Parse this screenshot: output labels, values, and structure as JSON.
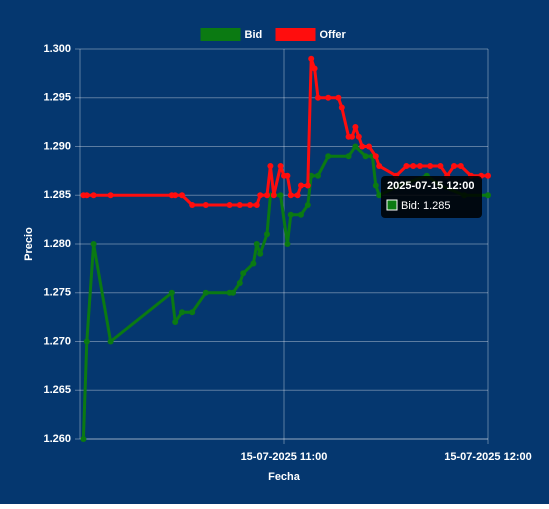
{
  "chart_data": {
    "type": "line",
    "xlabel": "Fecha",
    "ylabel": "Precio",
    "xlim": [
      "15-07-2025 10:00",
      "15-07-2025 12:00"
    ],
    "xticks": [
      "15-07-2025 11:00",
      "15-07-2025 12:00"
    ],
    "ylim": [
      1.26,
      1.3
    ],
    "yticks": [
      {
        "value": 1.26,
        "label": "1.260"
      },
      1.265,
      {
        "value": 1.27,
        "label": "1.270"
      },
      1.275,
      {
        "value": 1.28,
        "label": "1.280"
      },
      1.285,
      {
        "value": 1.29,
        "label": "1.290"
      },
      1.295,
      {
        "value": 1.3,
        "label": "1.300"
      }
    ],
    "grid": true,
    "legend": "top",
    "series": [
      {
        "name": "Bid",
        "color": "#0b7a12",
        "x": [
          "15-07-2025 10:01",
          "15-07-2025 10:02",
          "15-07-2025 10:04",
          "15-07-2025 10:09",
          "15-07-2025 10:27",
          "15-07-2025 10:28",
          "15-07-2025 10:30",
          "15-07-2025 10:33",
          "15-07-2025 10:37",
          "15-07-2025 10:44",
          "15-07-2025 10:45",
          "15-07-2025 10:47",
          "15-07-2025 10:48",
          "15-07-2025 10:51",
          "15-07-2025 10:52",
          "15-07-2025 10:53",
          "15-07-2025 10:55",
          "15-07-2025 10:56",
          "15-07-2025 10:59",
          "15-07-2025 11:01",
          "15-07-2025 11:02",
          "15-07-2025 11:05",
          "15-07-2025 11:07",
          "15-07-2025 11:08",
          "15-07-2025 11:10",
          "15-07-2025 11:13",
          "15-07-2025 11:19",
          "15-07-2025 11:21",
          "15-07-2025 11:24",
          "15-07-2025 11:26",
          "15-07-2025 11:27",
          "15-07-2025 11:28",
          "15-07-2025 11:34",
          "15-07-2025 11:42",
          "15-07-2025 11:46",
          "15-07-2025 11:53",
          "15-07-2025 12:00"
        ],
        "values": [
          1.26,
          1.27,
          1.28,
          1.27,
          1.275,
          1.272,
          1.273,
          1.273,
          1.275,
          1.275,
          1.275,
          1.276,
          1.277,
          1.278,
          1.28,
          1.279,
          1.281,
          1.285,
          1.285,
          1.28,
          1.283,
          1.283,
          1.284,
          1.287,
          1.287,
          1.289,
          1.289,
          1.29,
          1.289,
          1.289,
          1.286,
          1.285,
          1.286,
          1.287,
          1.286,
          1.285,
          1.285
        ]
      },
      {
        "name": "Offer",
        "color": "#ff0d0d",
        "x": [
          "15-07-2025 10:01",
          "15-07-2025 10:02",
          "15-07-2025 10:04",
          "15-07-2025 10:09",
          "15-07-2025 10:27",
          "15-07-2025 10:28",
          "15-07-2025 10:30",
          "15-07-2025 10:33",
          "15-07-2025 10:37",
          "15-07-2025 10:44",
          "15-07-2025 10:47",
          "15-07-2025 10:50",
          "15-07-2025 10:52",
          "15-07-2025 10:53",
          "15-07-2025 10:55",
          "15-07-2025 10:56",
          "15-07-2025 10:57",
          "15-07-2025 10:59",
          "15-07-2025 11:00",
          "15-07-2025 11:01",
          "15-07-2025 11:02",
          "15-07-2025 11:04",
          "15-07-2025 11:05",
          "15-07-2025 11:07",
          "15-07-2025 11:08",
          "15-07-2025 11:09",
          "15-07-2025 11:10",
          "15-07-2025 11:13",
          "15-07-2025 11:16",
          "15-07-2025 11:17",
          "15-07-2025 11:19",
          "15-07-2025 11:20",
          "15-07-2025 11:21",
          "15-07-2025 11:22",
          "15-07-2025 11:23",
          "15-07-2025 11:25",
          "15-07-2025 11:27",
          "15-07-2025 11:28",
          "15-07-2025 11:33",
          "15-07-2025 11:36",
          "15-07-2025 11:38",
          "15-07-2025 11:40",
          "15-07-2025 11:43",
          "15-07-2025 11:46",
          "15-07-2025 11:48",
          "15-07-2025 11:50",
          "15-07-2025 11:52",
          "15-07-2025 11:55",
          "15-07-2025 11:58",
          "15-07-2025 12:00"
        ],
        "values": [
          1.285,
          1.285,
          1.285,
          1.285,
          1.285,
          1.285,
          1.285,
          1.284,
          1.284,
          1.284,
          1.284,
          1.284,
          1.284,
          1.285,
          1.285,
          1.288,
          1.285,
          1.288,
          1.287,
          1.287,
          1.285,
          1.285,
          1.286,
          1.286,
          1.299,
          1.298,
          1.295,
          1.295,
          1.295,
          1.294,
          1.291,
          1.291,
          1.292,
          1.291,
          1.29,
          1.29,
          1.289,
          1.288,
          1.287,
          1.288,
          1.288,
          1.288,
          1.288,
          1.288,
          1.287,
          1.288,
          1.288,
          1.287,
          1.287,
          1.287
        ]
      }
    ],
    "tooltip": {
      "title": "2025-07-15 12:00",
      "label": "Bid: 1.285"
    }
  }
}
